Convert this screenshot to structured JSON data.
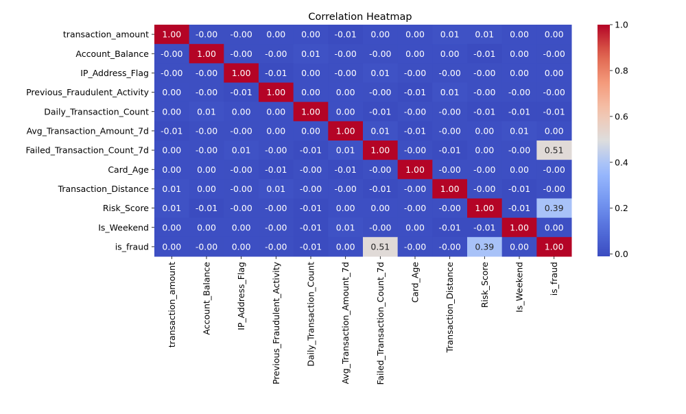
{
  "chart_data": {
    "type": "heatmap",
    "title": "Correlation Heatmap",
    "x_labels": [
      "transaction_amount",
      "Account_Balance",
      "IP_Address_Flag",
      "Previous_Fraudulent_Activity",
      "Daily_Transaction_Count",
      "Avg_Transaction_Amount_7d",
      "Failed_Transaction_Count_7d",
      "Card_Age",
      "Transaction_Distance",
      "Risk_Score",
      "Is_Weekend",
      "is_fraud"
    ],
    "y_labels": [
      "transaction_amount",
      "Account_Balance",
      "IP_Address_Flag",
      "Previous_Fraudulent_Activity",
      "Daily_Transaction_Count",
      "Avg_Transaction_Amount_7d",
      "Failed_Transaction_Count_7d",
      "Card_Age",
      "Transaction_Distance",
      "Risk_Score",
      "Is_Weekend",
      "is_fraud"
    ],
    "values": [
      [
        1.0,
        -0.001,
        -0.001,
        0.001,
        0.001,
        -0.01,
        0.001,
        0.001,
        0.01,
        0.01,
        0.001,
        0.001
      ],
      [
        -0.001,
        1.0,
        -0.001,
        -0.001,
        0.01,
        -0.001,
        -0.001,
        0.001,
        0.001,
        -0.01,
        0.001,
        -0.001
      ],
      [
        -0.001,
        -0.001,
        1.0,
        -0.01,
        0.001,
        -0.001,
        0.01,
        -0.001,
        -0.001,
        -0.001,
        0.001,
        0.001
      ],
      [
        0.001,
        -0.001,
        -0.01,
        1.0,
        0.001,
        0.001,
        -0.001,
        -0.01,
        0.01,
        -0.001,
        -0.001,
        -0.001
      ],
      [
        0.001,
        0.01,
        0.001,
        0.001,
        1.0,
        0.001,
        -0.01,
        -0.001,
        -0.001,
        -0.01,
        -0.01,
        -0.01
      ],
      [
        -0.01,
        -0.001,
        -0.001,
        0.001,
        0.001,
        1.0,
        0.01,
        -0.01,
        -0.001,
        0.001,
        0.01,
        0.001
      ],
      [
        0.001,
        -0.001,
        0.01,
        -0.001,
        -0.01,
        0.01,
        1.0,
        -0.001,
        -0.01,
        0.001,
        -0.001,
        0.51
      ],
      [
        0.001,
        0.001,
        -0.001,
        -0.01,
        -0.001,
        -0.01,
        -0.001,
        1.0,
        -0.001,
        -0.001,
        0.001,
        -0.001
      ],
      [
        0.01,
        0.001,
        -0.001,
        0.01,
        -0.001,
        -0.001,
        -0.01,
        -0.001,
        1.0,
        -0.001,
        -0.01,
        -0.001
      ],
      [
        0.01,
        -0.01,
        -0.001,
        -0.001,
        -0.01,
        0.001,
        0.001,
        -0.001,
        -0.001,
        1.0,
        -0.01,
        0.39
      ],
      [
        0.001,
        0.001,
        0.001,
        -0.001,
        -0.01,
        0.01,
        -0.001,
        0.001,
        -0.01,
        -0.01,
        1.0,
        0.001
      ],
      [
        0.001,
        -0.001,
        0.001,
        -0.001,
        -0.01,
        0.001,
        0.51,
        -0.001,
        -0.001,
        0.39,
        0.001,
        1.0
      ]
    ],
    "annotations": [
      [
        "1.00",
        "-0.00",
        "-0.00",
        "0.00",
        "0.00",
        "-0.01",
        "0.00",
        "0.00",
        "0.01",
        "0.01",
        "0.00",
        "0.00"
      ],
      [
        "-0.00",
        "1.00",
        "-0.00",
        "-0.00",
        "0.01",
        "-0.00",
        "-0.00",
        "0.00",
        "0.00",
        "-0.01",
        "0.00",
        "-0.00"
      ],
      [
        "-0.00",
        "-0.00",
        "1.00",
        "-0.01",
        "0.00",
        "-0.00",
        "0.01",
        "-0.00",
        "-0.00",
        "-0.00",
        "0.00",
        "0.00"
      ],
      [
        "0.00",
        "-0.00",
        "-0.01",
        "1.00",
        "0.00",
        "0.00",
        "-0.00",
        "-0.01",
        "0.01",
        "-0.00",
        "-0.00",
        "-0.00"
      ],
      [
        "0.00",
        "0.01",
        "0.00",
        "0.00",
        "1.00",
        "0.00",
        "-0.01",
        "-0.00",
        "-0.00",
        "-0.01",
        "-0.01",
        "-0.01"
      ],
      [
        "-0.01",
        "-0.00",
        "-0.00",
        "0.00",
        "0.00",
        "1.00",
        "0.01",
        "-0.01",
        "-0.00",
        "0.00",
        "0.01",
        "0.00"
      ],
      [
        "0.00",
        "-0.00",
        "0.01",
        "-0.00",
        "-0.01",
        "0.01",
        "1.00",
        "-0.00",
        "-0.01",
        "0.00",
        "-0.00",
        "0.51"
      ],
      [
        "0.00",
        "0.00",
        "-0.00",
        "-0.01",
        "-0.00",
        "-0.01",
        "-0.00",
        "1.00",
        "-0.00",
        "-0.00",
        "0.00",
        "-0.00"
      ],
      [
        "0.01",
        "0.00",
        "-0.00",
        "0.01",
        "-0.00",
        "-0.00",
        "-0.01",
        "-0.00",
        "1.00",
        "-0.00",
        "-0.01",
        "-0.00"
      ],
      [
        "0.01",
        "-0.01",
        "-0.00",
        "-0.00",
        "-0.01",
        "0.00",
        "0.00",
        "-0.00",
        "-0.00",
        "1.00",
        "-0.01",
        "0.39"
      ],
      [
        "0.00",
        "0.00",
        "0.00",
        "-0.00",
        "-0.01",
        "0.01",
        "-0.00",
        "0.00",
        "-0.01",
        "-0.01",
        "1.00",
        "0.00"
      ],
      [
        "0.00",
        "-0.00",
        "0.00",
        "-0.00",
        "-0.01",
        "0.00",
        "0.51",
        "-0.00",
        "-0.00",
        "0.39",
        "0.00",
        "1.00"
      ]
    ],
    "colormap": "coolwarm",
    "vmin": -0.01,
    "vmax": 1.0,
    "colorbar_ticks": [
      0.0,
      0.2,
      0.4,
      0.6,
      0.8,
      1.0
    ],
    "colorbar_tick_labels": [
      "0.0",
      "0.2",
      "0.4",
      "0.6",
      "0.8",
      "1.0"
    ],
    "xlabel": "",
    "ylabel": ""
  }
}
